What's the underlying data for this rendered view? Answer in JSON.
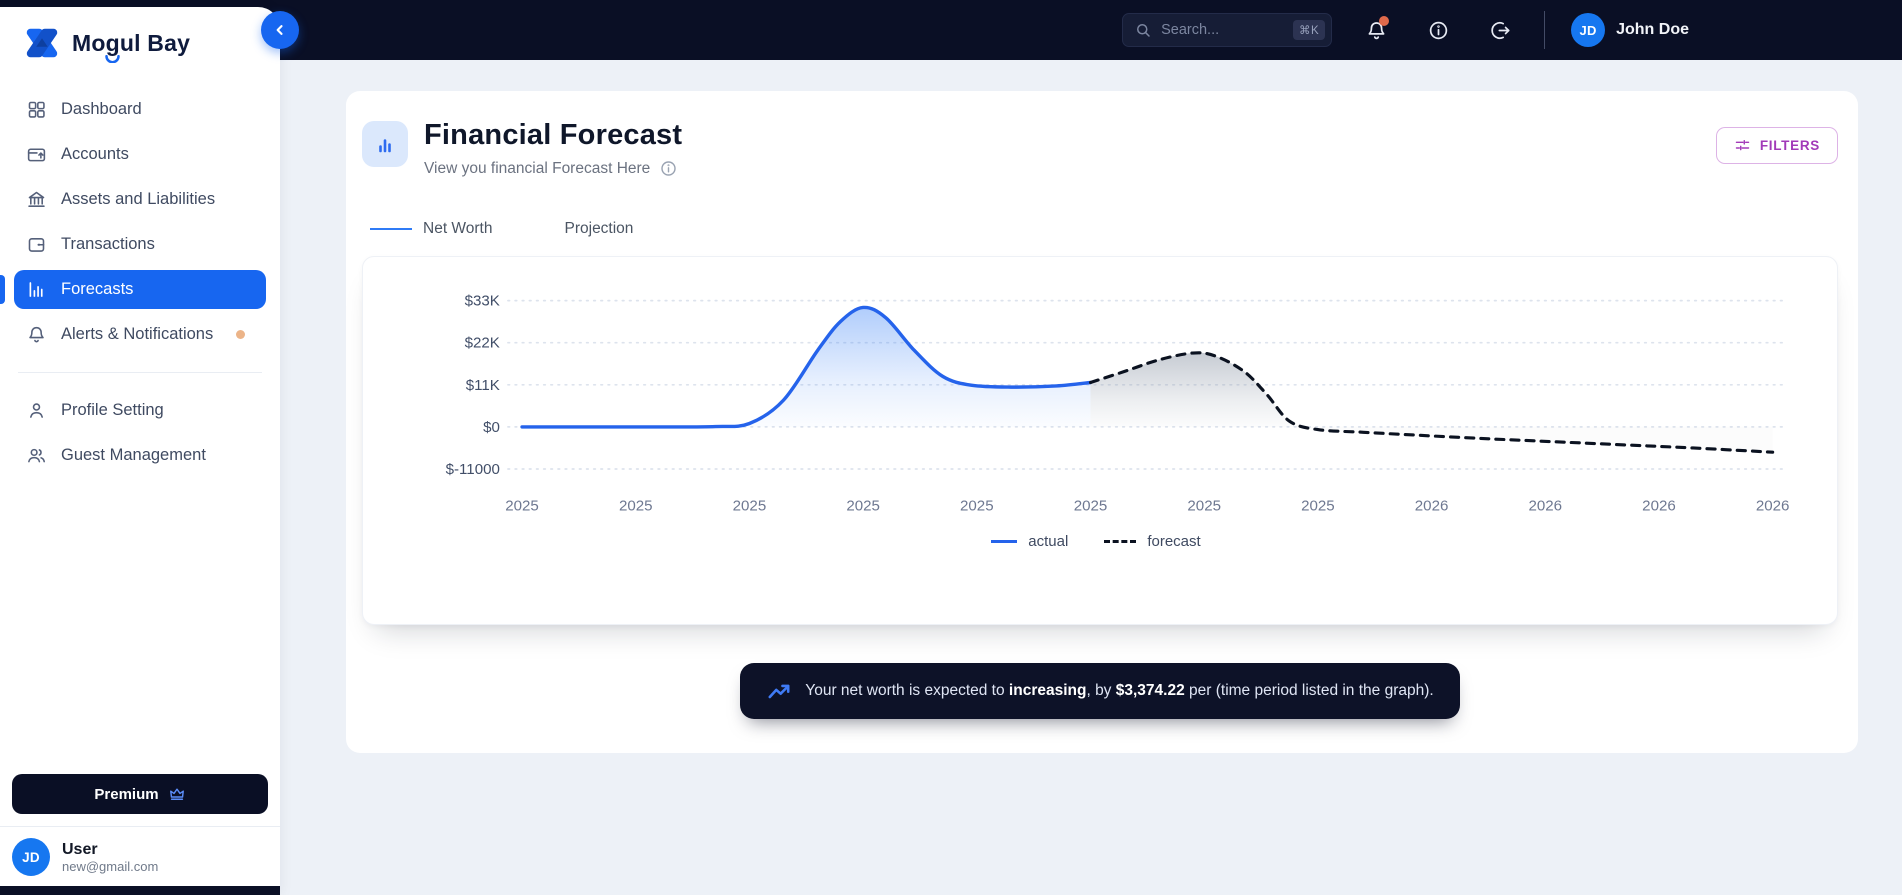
{
  "brand": {
    "name_pre": "Mo",
    "name_g": "g",
    "name_post": "ul Bay"
  },
  "topbar": {
    "search": {
      "placeholder": "Search...",
      "shortcut": "⌘K"
    },
    "user": {
      "initials": "JD",
      "name": "John Doe"
    }
  },
  "sidebar": {
    "items": [
      {
        "label": "Dashboard"
      },
      {
        "label": "Accounts"
      },
      {
        "label": "Assets and Liabilities"
      },
      {
        "label": "Transactions"
      },
      {
        "label": "Forecasts"
      },
      {
        "label": "Alerts & Notifications"
      }
    ],
    "secondary": [
      {
        "label": "Profile Setting"
      },
      {
        "label": "Guest Management"
      }
    ],
    "premium_label": "Premium",
    "user": {
      "initials": "JD",
      "name": "User",
      "email": "new@gmail.com"
    }
  },
  "page": {
    "title": "Financial Forecast",
    "subtitle": "View you financial Forecast Here",
    "filters_label": "FILTERS"
  },
  "tabs": [
    {
      "label": "Net Worth",
      "active": true
    },
    {
      "label": "Projection",
      "active": false
    }
  ],
  "banner": {
    "prefix": "Your net worth is expected to ",
    "bold_1": "increasing",
    "middle": ", by ",
    "bold_2": "$3,374.22",
    "suffix": " per (time period listed in the graph)."
  },
  "colors": {
    "accent_blue": "#1766f0",
    "navbar_bg": "#0a0f25",
    "filters_purple": "#a23ab8",
    "alert_dot": "#ecb488",
    "notification_dot": "#e06a4b"
  },
  "chart_data": {
    "type": "area",
    "unit": "USD",
    "x_labels": [
      "2025",
      "2025",
      "2025",
      "2025",
      "2025",
      "2025",
      "2025",
      "2025",
      "2026",
      "2026",
      "2026",
      "2026"
    ],
    "y_ticks": [
      {
        "label": "$33K",
        "value": 33000
      },
      {
        "label": "$22K",
        "value": 22000
      },
      {
        "label": "$11K",
        "value": 11000
      },
      {
        "label": "$0",
        "value": 0
      },
      {
        "label": "$-11000",
        "value": -11000
      }
    ],
    "ylim": [
      -14500,
      36000
    ],
    "grid": "dotted-horizontal",
    "legend_position": "bottom-center",
    "series": [
      {
        "name": "actual",
        "style": "solid",
        "color": "#2563eb",
        "points": [
          [
            0,
            0
          ],
          [
            0.6,
            0
          ],
          [
            1.2,
            0
          ],
          [
            1.7,
            100
          ],
          [
            2.0,
            900
          ],
          [
            2.3,
            7000
          ],
          [
            2.6,
            20000
          ],
          [
            2.8,
            27500
          ],
          [
            3.0,
            31200
          ],
          [
            3.2,
            28500
          ],
          [
            3.45,
            20000
          ],
          [
            3.7,
            13200
          ],
          [
            3.95,
            10900
          ],
          [
            4.3,
            10400
          ],
          [
            4.7,
            10700
          ],
          [
            5.0,
            11600
          ]
        ]
      },
      {
        "name": "forecast",
        "style": "dashed",
        "color": "#0b1220",
        "points": [
          [
            5.0,
            11600
          ],
          [
            5.3,
            14500
          ],
          [
            5.6,
            17500
          ],
          [
            5.9,
            19300
          ],
          [
            6.1,
            18500
          ],
          [
            6.35,
            14500
          ],
          [
            6.55,
            8500
          ],
          [
            6.75,
            1500
          ],
          [
            7.0,
            -700
          ],
          [
            7.4,
            -1400
          ],
          [
            7.9,
            -2200
          ],
          [
            8.5,
            -3100
          ],
          [
            9.1,
            -3900
          ],
          [
            9.7,
            -4700
          ],
          [
            10.3,
            -5500
          ],
          [
            11,
            -6600
          ]
        ]
      }
    ]
  }
}
